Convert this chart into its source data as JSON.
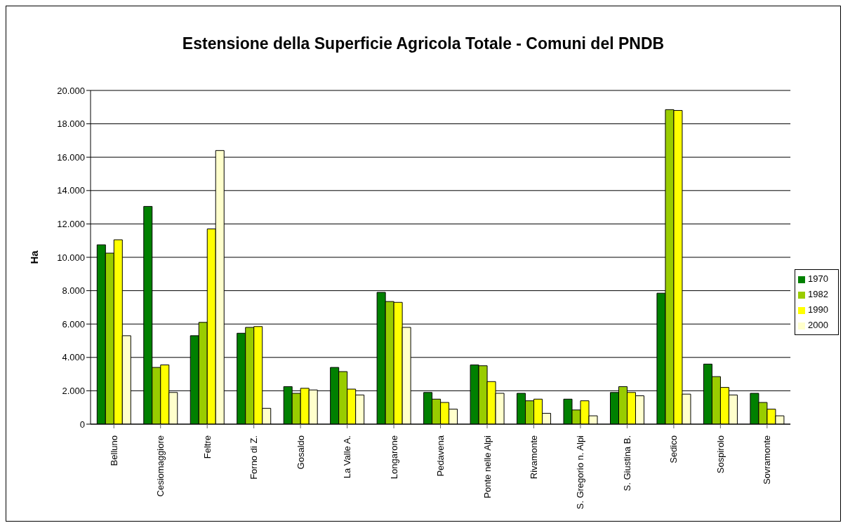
{
  "chart_data": {
    "type": "bar",
    "title": "Estensione della Superficie Agricola Totale - Comuni del PNDB",
    "ylabel": "Ha",
    "categories": [
      "Belluno",
      "Cesiomaggiore",
      "Feltre",
      "Forno di Z.",
      "Gosaldo",
      "La Valle A.",
      "Longarone",
      "Pedavena",
      "Ponte nelle Alpi",
      "Rivamonte",
      "S. Gregorio n. Alpi",
      "S. Giustina B.",
      "Sedico",
      "Sospirolo",
      "Sovramonte"
    ],
    "series": [
      {
        "name": "1970",
        "color": "#008000",
        "values": [
          10750,
          13050,
          5300,
          5450,
          2250,
          3400,
          7900,
          1900,
          3550,
          1850,
          1500,
          1900,
          7850,
          3600,
          1850
        ]
      },
      {
        "name": "1982",
        "color": "#99cc00",
        "values": [
          10250,
          3400,
          6100,
          5800,
          1850,
          3150,
          7350,
          1500,
          3500,
          1400,
          850,
          2250,
          18850,
          2850,
          1300
        ]
      },
      {
        "name": "1990",
        "color": "#ffff00",
        "values": [
          11050,
          3550,
          11700,
          5850,
          2150,
          2100,
          7300,
          1300,
          2550,
          1500,
          1400,
          1900,
          18800,
          2200,
          900
        ]
      },
      {
        "name": "2000",
        "color": "#ffffcc",
        "values": [
          5300,
          1900,
          16400,
          950,
          2050,
          1750,
          5800,
          900,
          1850,
          650,
          500,
          1700,
          1800,
          1750,
          500
        ]
      }
    ],
    "ylim": [
      0,
      20000
    ],
    "yticks": [
      0,
      {
        "value": 2000,
        "label": "2.000"
      },
      {
        "value": 4000,
        "label": "4.000"
      },
      {
        "value": 6000,
        "label": "6.000"
      },
      {
        "value": 8000,
        "label": "8.000"
      },
      {
        "value": 10000,
        "label": "10.000"
      },
      {
        "value": 12000,
        "label": "12.000"
      },
      {
        "value": 14000,
        "label": "14.000"
      },
      {
        "value": 16000,
        "label": "16.000"
      },
      {
        "value": 18000,
        "label": "18.000"
      },
      {
        "value": 20000,
        "label": "20.000"
      }
    ],
    "grid": "y",
    "legend": "right"
  }
}
